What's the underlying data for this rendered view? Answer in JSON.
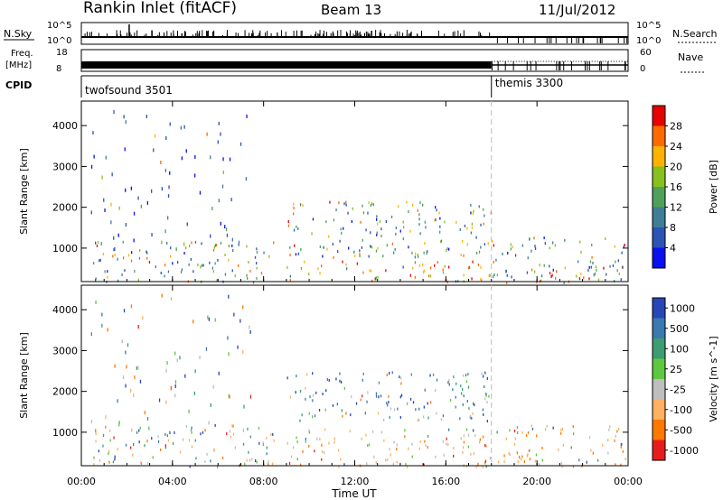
{
  "header": {
    "title": "Rankin Inlet (fitACF)",
    "beam": "Beam 13",
    "date": "11/Jul/2012"
  },
  "status_panels": {
    "nsky_label": "N.Sky",
    "nsky_ticks": [
      "10^5",
      "10^0"
    ],
    "nsearch_label": "N.Search",
    "nsearch_ticks": [
      "10^5",
      "10^0"
    ],
    "freq_label": "Freq.",
    "freq_unit": "[MHz]",
    "freq_ticks": [
      "18",
      "8"
    ],
    "nave_label": "Nave",
    "nave_ticks": [
      "60",
      "0"
    ],
    "cpid_label": "CPID",
    "cpid_segments": [
      {
        "name": "twofsound 3501",
        "start_hour": 0
      },
      {
        "name": "themis 3300",
        "start_hour": 18
      }
    ]
  },
  "chart_data": [
    {
      "type": "heatmap",
      "parameter": "Power",
      "ylabel": "Slant Range [km]",
      "ylim": [
        180,
        4600
      ],
      "yticks": [
        1000,
        2000,
        3000,
        4000
      ],
      "xlim_hours": [
        0,
        24
      ],
      "xticks": [
        "00:00",
        "04:00",
        "08:00",
        "12:00",
        "16:00",
        "20:00",
        "00:00"
      ],
      "colorbar": {
        "label": "Power [dB]",
        "range": [
          0,
          32
        ],
        "ticks": [
          "4",
          "8",
          "12",
          "16",
          "20",
          "24",
          "28"
        ],
        "colors": [
          "#0a10f0",
          "#2c54b4",
          "#3e7e96",
          "#4fa15a",
          "#87c11d",
          "#ffb200",
          "#ff6a00",
          "#e60000"
        ]
      },
      "scatter_regions": [
        {
          "t": [
            0.3,
            7.5
          ],
          "r": [
            1000,
            4400
          ],
          "dominant": "low"
        },
        {
          "t": [
            0.5,
            8.5
          ],
          "r": [
            180,
            1200
          ],
          "dominant": "medium"
        },
        {
          "t": [
            0.5,
            3.0
          ],
          "r": [
            1900,
            2300
          ],
          "dominant": "low"
        },
        {
          "t": [
            9.0,
            18.0
          ],
          "r": [
            800,
            2200
          ],
          "dominant": "medium"
        },
        {
          "t": [
            9.0,
            18.0
          ],
          "r": [
            180,
            700
          ],
          "dominant": "high"
        },
        {
          "t": [
            18.0,
            24.0
          ],
          "r": [
            180,
            1300
          ],
          "dominant": "medium"
        },
        {
          "t": [
            20.5,
            23.0
          ],
          "r": [
            200,
            500
          ],
          "dominant": "high"
        }
      ]
    },
    {
      "type": "heatmap",
      "parameter": "Velocity",
      "ylabel": "Slant Range [km]",
      "ylim": [
        180,
        4600
      ],
      "yticks": [
        1000,
        2000,
        3000,
        4000
      ],
      "xlim_hours": [
        0,
        24
      ],
      "xticks": [
        "00:00",
        "04:00",
        "08:00",
        "12:00",
        "16:00",
        "20:00",
        "00:00"
      ],
      "xlabel": "Time UT",
      "colorbar": {
        "label": "Velocity [m s^-1]",
        "ticks": [
          "1000",
          "500",
          "100",
          "25",
          "-25",
          "-100",
          "-500",
          "-1000"
        ],
        "colors": [
          "#2746b8",
          "#3a78b0",
          "#3c9c72",
          "#5ec840",
          "#bebebe",
          "#ffb060",
          "#ff7800",
          "#e81c1c"
        ]
      },
      "scatter_regions": [
        {
          "t": [
            0.3,
            7.5
          ],
          "r": [
            1000,
            4400
          ],
          "dominant": "mixed"
        },
        {
          "t": [
            0.5,
            3.0
          ],
          "r": [
            1900,
            2300
          ],
          "dominant": "ground"
        },
        {
          "t": [
            0.5,
            8.5
          ],
          "r": [
            180,
            1200
          ],
          "dominant": "mixed"
        },
        {
          "t": [
            9.0,
            18.0
          ],
          "r": [
            1300,
            2500
          ],
          "dominant": "positive"
        },
        {
          "t": [
            9.0,
            18.0
          ],
          "r": [
            180,
            1100
          ],
          "dominant": "negative"
        },
        {
          "t": [
            18.0,
            24.0
          ],
          "r": [
            180,
            1200
          ],
          "dominant": "negative"
        }
      ]
    }
  ]
}
